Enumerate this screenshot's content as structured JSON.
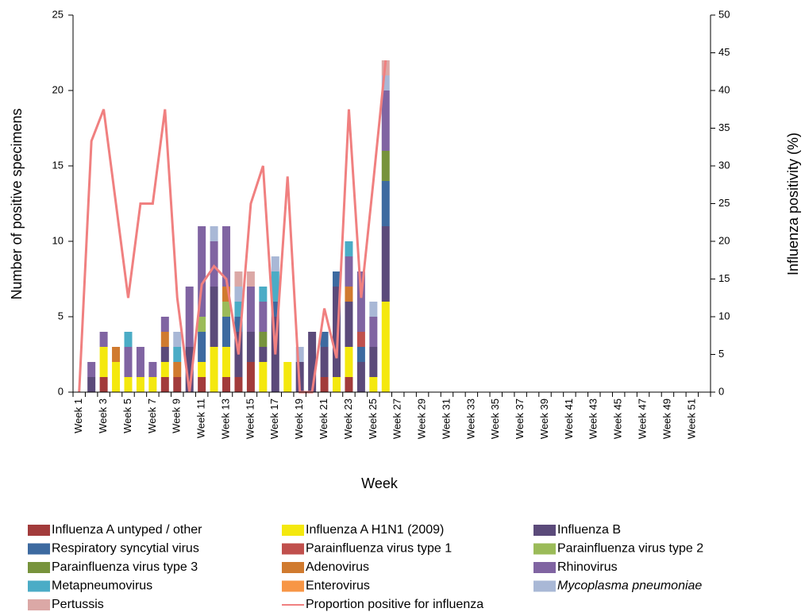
{
  "chart_data": {
    "type": "bar",
    "stacked": true,
    "x_label": "Week",
    "y_label": "Number of positive specimens",
    "y2_label": "Influenza positivity (%)",
    "categories": [
      "Week 1",
      null,
      "Week 3",
      null,
      "Week 5",
      null,
      "Week 7",
      null,
      "Week 9",
      null,
      "Week 11",
      null,
      "Week 13",
      null,
      "Week 15",
      null,
      "Week 17",
      null,
      "Week 19",
      null,
      "Week 21",
      null,
      "Week 23",
      null,
      "Week 25",
      null,
      "Week 27",
      null,
      "Week 29",
      null,
      "Week 31",
      null,
      "Week 33",
      null,
      "Week 35",
      null,
      "Week 37",
      null,
      "Week 39",
      null,
      "Week 41",
      null,
      "Week 43",
      null,
      "Week 45",
      null,
      "Week 47",
      null,
      "Week 49",
      null,
      "Week 51",
      null
    ],
    "ylim": [
      0,
      25
    ],
    "yticks": [
      0,
      5,
      10,
      15,
      20,
      25
    ],
    "y2lim": [
      0,
      50
    ],
    "y2ticks": [
      0,
      5,
      10,
      15,
      20,
      25,
      30,
      35,
      40,
      45,
      50
    ],
    "series": [
      {
        "name": "Influenza A untyped / other",
        "color": "#a23b3b",
        "values": [
          0,
          0,
          1,
          0,
          0,
          0,
          0,
          1,
          1,
          0,
          1,
          0,
          1,
          1,
          2,
          0,
          0,
          0,
          0,
          0,
          1,
          0,
          1,
          0,
          0,
          0,
          0,
          0,
          0,
          0,
          0,
          0,
          0,
          0,
          0,
          0,
          0,
          0,
          0,
          0,
          0,
          0,
          0,
          0,
          0,
          0,
          0,
          0,
          0,
          0,
          0,
          0
        ]
      },
      {
        "name": "Influenza A H1N1 (2009)",
        "color": "#f4e80e",
        "values": [
          0,
          0,
          2,
          2,
          1,
          1,
          1,
          1,
          0,
          0,
          1,
          3,
          2,
          0,
          0,
          2,
          0,
          2,
          0,
          0,
          0,
          1,
          2,
          0,
          1,
          6,
          0,
          0,
          0,
          0,
          0,
          0,
          0,
          0,
          0,
          0,
          0,
          0,
          0,
          0,
          0,
          0,
          0,
          0,
          0,
          0,
          0,
          0,
          0,
          0,
          0,
          0
        ]
      },
      {
        "name": "Influenza B",
        "color": "#5b4a7a",
        "values": [
          0,
          1,
          0,
          0,
          0,
          0,
          0,
          1,
          0,
          3,
          0,
          4,
          0,
          3,
          2,
          1,
          5,
          0,
          2,
          4,
          2,
          6,
          3,
          2,
          2,
          5,
          0,
          0,
          0,
          0,
          0,
          0,
          0,
          0,
          0,
          0,
          0,
          0,
          0,
          0,
          0,
          0,
          0,
          0,
          0,
          0,
          0,
          0,
          0,
          0,
          0,
          0
        ]
      },
      {
        "name": "Respiratory syncytial virus",
        "color": "#3d6aa0",
        "values": [
          0,
          0,
          0,
          0,
          0,
          0,
          0,
          0,
          0,
          0,
          2,
          0,
          2,
          1,
          0,
          0,
          1,
          0,
          0,
          0,
          1,
          1,
          0,
          1,
          0,
          3,
          0,
          0,
          0,
          0,
          0,
          0,
          0,
          0,
          0,
          0,
          0,
          0,
          0,
          0,
          0,
          0,
          0,
          0,
          0,
          0,
          0,
          0,
          0,
          0,
          0,
          0
        ]
      },
      {
        "name": "Parainfluenza virus type 1",
        "color": "#c0504d",
        "values": [
          0,
          0,
          0,
          0,
          0,
          0,
          0,
          0,
          0,
          0,
          0,
          0,
          0,
          0,
          0,
          0,
          0,
          0,
          0,
          0,
          0,
          0,
          0,
          1,
          0,
          0,
          0,
          0,
          0,
          0,
          0,
          0,
          0,
          0,
          0,
          0,
          0,
          0,
          0,
          0,
          0,
          0,
          0,
          0,
          0,
          0,
          0,
          0,
          0,
          0,
          0,
          0
        ]
      },
      {
        "name": "Parainfluenza virus type 2",
        "color": "#9bbb59",
        "values": [
          0,
          0,
          0,
          0,
          0,
          0,
          0,
          0,
          0,
          0,
          1,
          0,
          1,
          0,
          0,
          0,
          0,
          0,
          0,
          0,
          0,
          0,
          0,
          0,
          0,
          0,
          0,
          0,
          0,
          0,
          0,
          0,
          0,
          0,
          0,
          0,
          0,
          0,
          0,
          0,
          0,
          0,
          0,
          0,
          0,
          0,
          0,
          0,
          0,
          0,
          0,
          0
        ]
      },
      {
        "name": "Parainfluenza virus type 3",
        "color": "#77933c",
        "values": [
          0,
          0,
          0,
          0,
          0,
          0,
          0,
          0,
          0,
          0,
          0,
          0,
          0,
          0,
          0,
          1,
          0,
          0,
          0,
          0,
          0,
          0,
          0,
          0,
          0,
          2,
          0,
          0,
          0,
          0,
          0,
          0,
          0,
          0,
          0,
          0,
          0,
          0,
          0,
          0,
          0,
          0,
          0,
          0,
          0,
          0,
          0,
          0,
          0,
          0,
          0,
          0
        ]
      },
      {
        "name": "Adenovirus",
        "color": "#d07a2f",
        "values": [
          0,
          0,
          0,
          1,
          0,
          0,
          0,
          1,
          1,
          0,
          0,
          0,
          1,
          0,
          0,
          0,
          0,
          0,
          0,
          0,
          0,
          0,
          1,
          0,
          0,
          0,
          0,
          0,
          0,
          0,
          0,
          0,
          0,
          0,
          0,
          0,
          0,
          0,
          0,
          0,
          0,
          0,
          0,
          0,
          0,
          0,
          0,
          0,
          0,
          0,
          0,
          0
        ]
      },
      {
        "name": "Rhinovirus",
        "color": "#8064a2",
        "values": [
          0,
          1,
          1,
          0,
          2,
          2,
          1,
          1,
          0,
          4,
          6,
          3,
          4,
          0,
          3,
          2,
          0,
          0,
          0,
          0,
          0,
          0,
          2,
          4,
          2,
          4,
          0,
          0,
          0,
          0,
          0,
          0,
          0,
          0,
          0,
          0,
          0,
          0,
          0,
          0,
          0,
          0,
          0,
          0,
          0,
          0,
          0,
          0,
          0,
          0,
          0,
          0
        ]
      },
      {
        "name": "Metapneumovirus",
        "color": "#4bacc6",
        "values": [
          0,
          0,
          0,
          0,
          1,
          0,
          0,
          0,
          1,
          0,
          0,
          0,
          0,
          1,
          0,
          1,
          2,
          0,
          0,
          0,
          0,
          0,
          1,
          0,
          0,
          0,
          0,
          0,
          0,
          0,
          0,
          0,
          0,
          0,
          0,
          0,
          0,
          0,
          0,
          0,
          0,
          0,
          0,
          0,
          0,
          0,
          0,
          0,
          0,
          0,
          0,
          0
        ]
      },
      {
        "name": "Enterovirus",
        "color": "#f79646",
        "values": [
          0,
          0,
          0,
          0,
          0,
          0,
          0,
          0,
          0,
          0,
          0,
          0,
          0,
          0,
          0,
          0,
          0,
          0,
          0,
          0,
          0,
          0,
          0,
          0,
          0,
          0,
          0,
          0,
          0,
          0,
          0,
          0,
          0,
          0,
          0,
          0,
          0,
          0,
          0,
          0,
          0,
          0,
          0,
          0,
          0,
          0,
          0,
          0,
          0,
          0,
          0,
          0
        ]
      },
      {
        "name": "Mycoplasma pneumoniae",
        "italic": true,
        "color": "#a9b8d6",
        "values": [
          0,
          0,
          0,
          0,
          0,
          0,
          0,
          0,
          1,
          0,
          0,
          1,
          0,
          1,
          0,
          0,
          1,
          0,
          1,
          0,
          0,
          0,
          0,
          0,
          1,
          1,
          0,
          0,
          0,
          0,
          0,
          0,
          0,
          0,
          0,
          0,
          0,
          0,
          0,
          0,
          0,
          0,
          0,
          0,
          0,
          0,
          0,
          0,
          0,
          0,
          0,
          0
        ]
      },
      {
        "name": "Pertussis",
        "color": "#dba8a6",
        "values": [
          0,
          0,
          0,
          0,
          0,
          0,
          0,
          0,
          0,
          0,
          0,
          0,
          0,
          1,
          1,
          0,
          0,
          0,
          0,
          0,
          0,
          0,
          0,
          0,
          0,
          1,
          0,
          0,
          0,
          0,
          0,
          0,
          0,
          0,
          0,
          0,
          0,
          0,
          0,
          0,
          0,
          0,
          0,
          0,
          0,
          0,
          0,
          0,
          0,
          0,
          0,
          0
        ]
      },
      {
        "name": "Proportion positive for influenza",
        "type": "line",
        "axis": "y2",
        "color": "#f08080",
        "values": [
          0,
          33.3,
          37.5,
          25,
          12.5,
          25,
          25,
          37.5,
          12.5,
          0,
          14.3,
          16.7,
          15,
          5,
          25,
          30,
          5,
          28.6,
          0,
          0,
          11.1,
          4.5,
          37.5,
          12.5,
          28,
          44,
          null,
          null,
          null,
          null,
          null,
          null,
          null,
          null,
          null,
          null,
          null,
          null,
          null,
          null,
          null,
          null,
          null,
          null,
          null,
          null,
          null,
          null,
          null,
          null,
          null,
          null
        ]
      }
    ]
  }
}
